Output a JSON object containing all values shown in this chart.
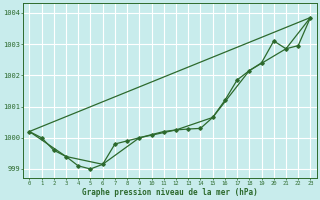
{
  "title": "Graphe pression niveau de la mer (hPa)",
  "bg_color": "#c8ecec",
  "grid_color": "#ffffff",
  "line_color": "#2d6a2d",
  "xlim": [
    -0.5,
    23.5
  ],
  "ylim": [
    998.7,
    1004.3
  ],
  "yticks": [
    999,
    1000,
    1001,
    1002,
    1003,
    1004
  ],
  "xticks": [
    0,
    1,
    2,
    3,
    4,
    5,
    6,
    7,
    8,
    9,
    10,
    11,
    12,
    13,
    14,
    15,
    16,
    17,
    18,
    19,
    20,
    21,
    22,
    23
  ],
  "series_hourly": {
    "x": [
      0,
      1,
      2,
      3,
      4,
      5,
      6,
      7,
      8,
      9,
      10,
      11,
      12,
      13,
      14,
      15,
      16,
      17,
      18,
      19,
      20,
      21,
      22,
      23
    ],
    "y": [
      1000.2,
      1000.0,
      999.6,
      999.4,
      999.1,
      999.0,
      999.15,
      999.8,
      999.9,
      1000.0,
      1000.1,
      1000.2,
      1000.25,
      1000.28,
      1000.3,
      1000.65,
      1001.2,
      1001.85,
      1002.15,
      1002.4,
      1003.1,
      1002.85,
      1002.95,
      1003.85
    ]
  },
  "series_3h": {
    "x": [
      0,
      3,
      6,
      9,
      12,
      15,
      18,
      21,
      23
    ],
    "y": [
      1000.2,
      999.4,
      999.15,
      1000.0,
      1000.25,
      1000.65,
      1002.15,
      1002.85,
      1003.85
    ]
  },
  "series_linear": {
    "x": [
      0,
      23
    ],
    "y": [
      1000.2,
      1003.85
    ]
  },
  "series_upper": {
    "x": [
      0,
      3,
      6,
      9,
      12,
      15,
      18,
      21,
      23
    ],
    "y": [
      1000.2,
      999.4,
      999.15,
      1000.0,
      1000.25,
      1000.65,
      1002.15,
      1002.85,
      1003.85
    ]
  }
}
